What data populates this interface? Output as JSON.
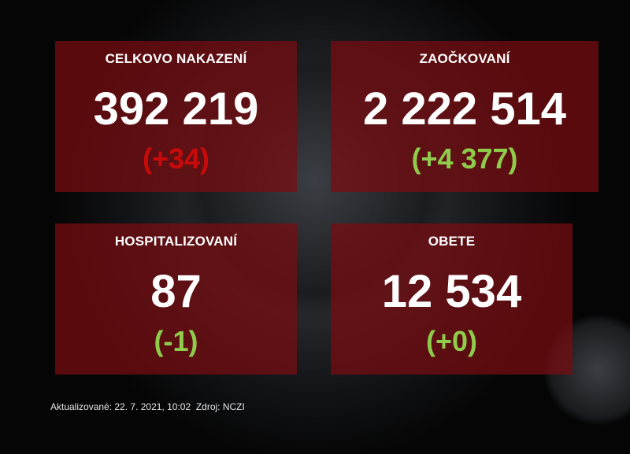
{
  "cards": [
    {
      "title": "CELKOVO NAKAZENÍ",
      "total": "392 219",
      "delta": "(+34)",
      "delta_color": "#c90a0a"
    },
    {
      "title": "ZAOČKOVANÍ",
      "total": "2 222 514",
      "delta": "(+4 377)",
      "delta_color": "#8fcc4c"
    },
    {
      "title": "HOSPITALIZOVANÍ",
      "total": "87",
      "delta": "(-1)",
      "delta_color": "#8fcc4c"
    },
    {
      "title": "OBETE",
      "total": "12 534",
      "delta": "(+0)",
      "delta_color": "#8fcc4c"
    }
  ],
  "footer": {
    "updated": "Aktualizované: 22. 7. 2021, 10:02",
    "source": "Zdroj: NCZI"
  },
  "colors": {
    "card_bg": "#780c10",
    "background": "#050505"
  }
}
